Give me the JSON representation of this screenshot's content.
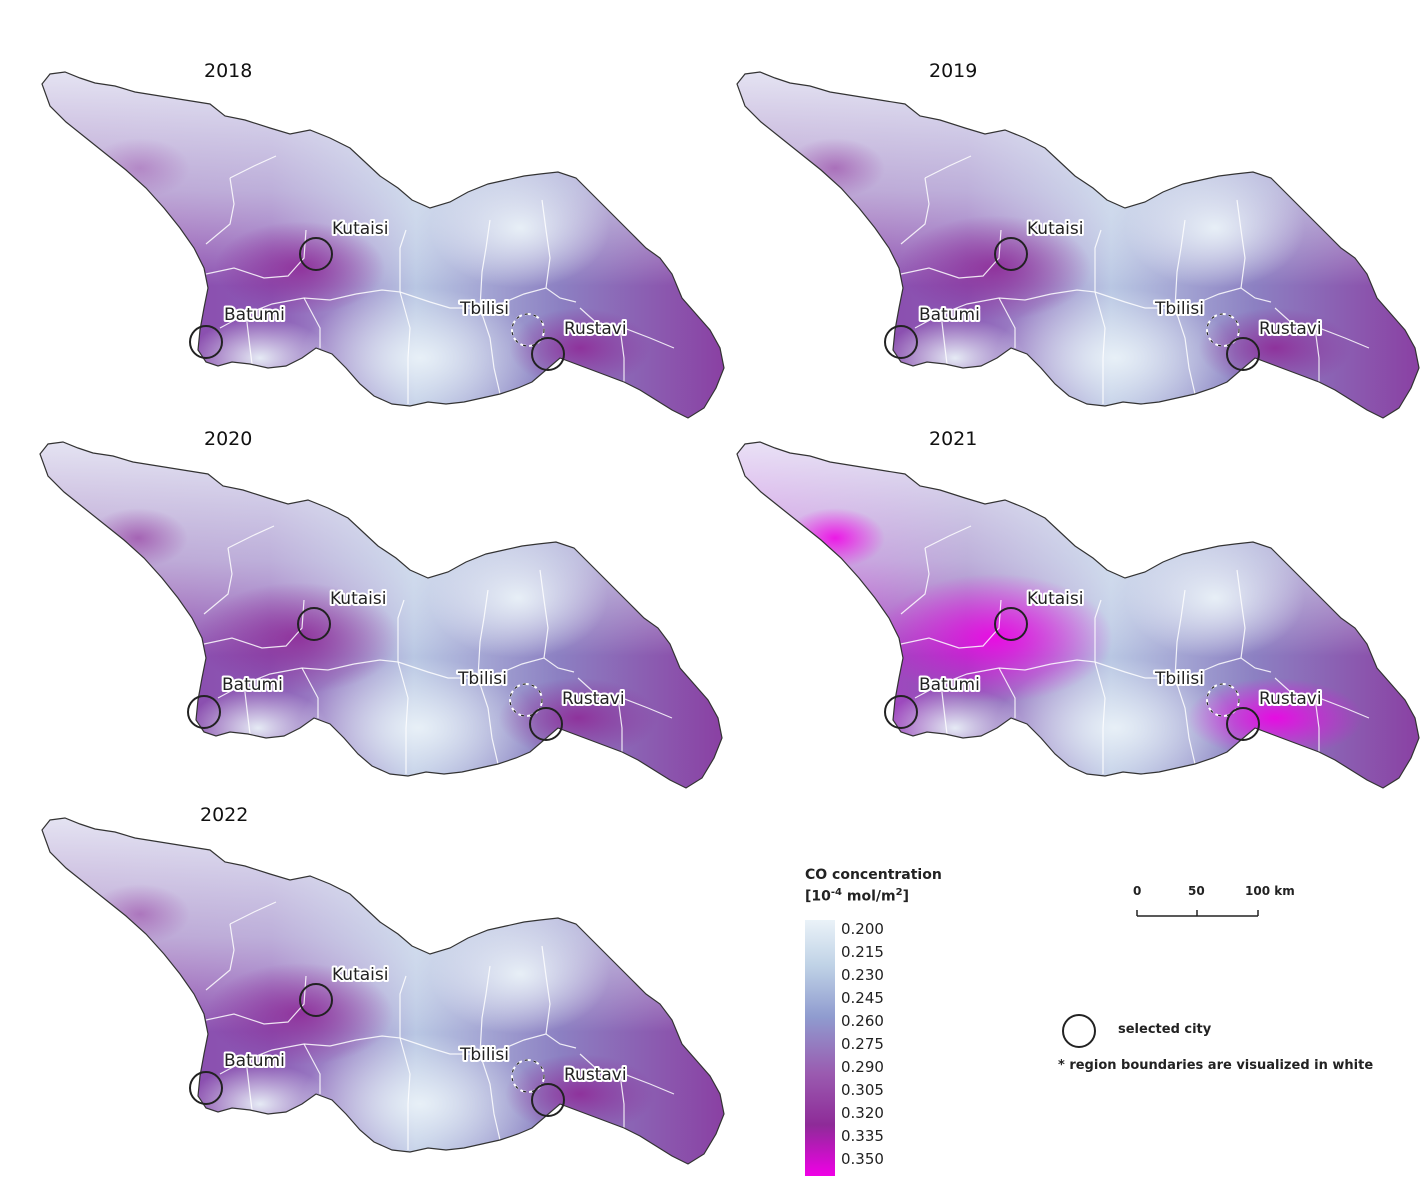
{
  "panels": [
    {
      "year": "2018",
      "level": 0.35
    },
    {
      "year": "2019",
      "level": 0.55
    },
    {
      "year": "2020",
      "level": 0.65
    },
    {
      "year": "2021",
      "level": 0.95
    },
    {
      "year": "2022",
      "level": 0.5
    }
  ],
  "cities": {
    "kutaisi": "Kutaisi",
    "batumi": "Batumi",
    "tbilisi": "Tbilisi",
    "rustavi": "Rustavi"
  },
  "legend": {
    "title_line1": "CO concentration",
    "title_line2_prefix": "[10",
    "title_line2_sup": "-4",
    "title_line2_mid": " mol/m",
    "title_line2_sup2": "2",
    "title_line2_suffix": "]",
    "ticks": [
      "0.200",
      "0.215",
      "0.230",
      "0.245",
      "0.260",
      "0.275",
      "0.290",
      "0.305",
      "0.320",
      "0.335",
      "0.350"
    ],
    "colors": {
      "low": "#eaf2f8",
      "mid": "#8f9bcf",
      "high": "#8e2b98",
      "max": "#f000e6"
    }
  },
  "scale_bar": {
    "labels": [
      "0",
      "50",
      "100 km"
    ]
  },
  "key": {
    "selected_city": "selected city",
    "note": "* region boundaries are visualized in white"
  }
}
